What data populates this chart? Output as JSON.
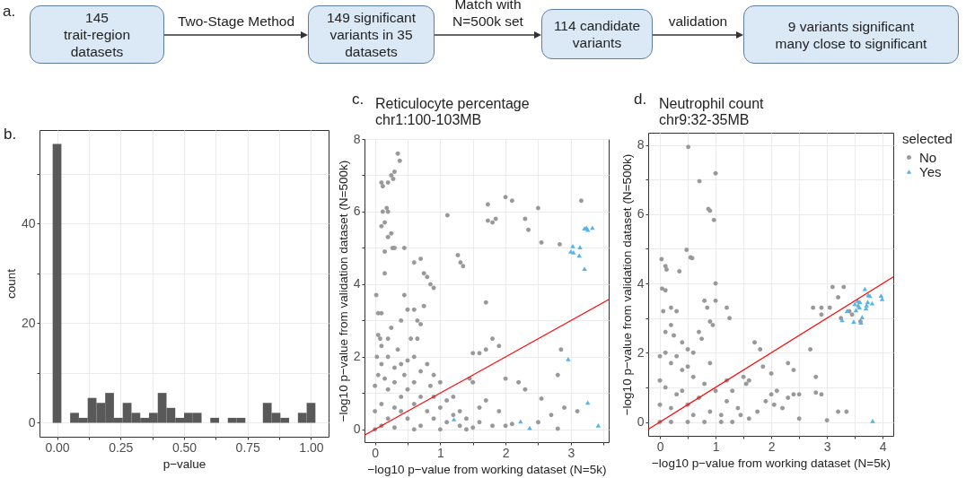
{
  "chart_data": [
    {
      "type": "other",
      "annotations": [
        "a.",
        "Two-Stage Method",
        "Match with\nN=500k set",
        "validation"
      ],
      "categories": [
        "145\ntrait-region\ndatasets",
        "149 significant\nvariants in 35\ndatasets",
        "114 candidate\nvariants",
        "9 variants significant\nmany close to significant"
      ]
    },
    {
      "type": "histogram",
      "annotations": [
        "b."
      ],
      "xlabel": "p−value",
      "ylabel": "count",
      "color": "#595959",
      "grid": true,
      "bins": [
        -0.0172,
        0.0172,
        0.0517,
        0.0862,
        0.1207,
        0.1552,
        0.1897,
        0.2241,
        0.2586,
        0.2931,
        0.3276,
        0.3621,
        0.3966,
        0.431,
        0.4655,
        0.5,
        0.5345,
        0.569,
        0.6034,
        0.6379,
        0.6724,
        0.7069,
        0.7414,
        0.7759,
        0.8103,
        0.8448,
        0.8793,
        0.9138,
        0.9483,
        0.9828,
        1.0172
      ],
      "values": [
        56,
        0,
        2,
        1,
        5,
        4,
        6,
        1,
        4,
        2,
        1,
        2,
        6,
        3,
        1,
        2,
        2,
        0,
        1,
        0,
        1,
        1,
        0,
        0,
        4,
        2,
        1,
        0,
        2,
        4
      ],
      "xlim": [
        -0.069,
        1.069
      ],
      "ylim": [
        -2.8,
        58.8
      ],
      "xticks": [
        {
          "value": 0,
          "label": "0.00"
        },
        {
          "value": 0.125,
          "label": null
        },
        {
          "value": 0.25,
          "label": "0.25"
        },
        {
          "value": 0.375,
          "label": null
        },
        {
          "value": 0.5,
          "label": "0.50"
        },
        {
          "value": 0.625,
          "label": null
        },
        {
          "value": 0.75,
          "label": "0.75"
        },
        {
          "value": 0.875,
          "label": null
        },
        {
          "value": 1,
          "label": "1.00"
        }
      ],
      "yticks": [
        0,
        {
          "value": 10,
          "label": null
        },
        20,
        {
          "value": 30,
          "label": null
        },
        40,
        {
          "value": 50,
          "label": null
        }
      ]
    },
    {
      "type": "scatter",
      "annotations": [
        "c."
      ],
      "title": "Reticulocyte percentage",
      "subtitle": "chr1:100-103MB",
      "xlabel": "−log10 p−value from working dataset (N=5k)",
      "ylabel": "−log10 p−value from validation dataset (N=500k)",
      "grid": true,
      "xlim": [
        -0.16,
        3.58
      ],
      "ylim": [
        -0.35,
        8.0
      ],
      "xticks": [
        0,
        {
          "value": 0.5,
          "label": null
        },
        1,
        {
          "value": 1.5,
          "label": null
        },
        2,
        {
          "value": 2.5,
          "label": null
        },
        3,
        {
          "value": 3.5,
          "label": null
        }
      ],
      "yticks": [
        0,
        {
          "value": 1,
          "label": null
        },
        2,
        {
          "value": 3,
          "label": null
        },
        4,
        {
          "value": 5,
          "label": null
        },
        6,
        {
          "value": 7,
          "label": null
        },
        8
      ],
      "series": [
        {
          "type": "scatter",
          "marker": "circle",
          "color": "#999999",
          "x": [
            0.02,
            0.05,
            0.08,
            0.03,
            0.1,
            0.12,
            0.2,
            0.25,
            0.3,
            0.28,
            0.35,
            0.38,
            0.1,
            0.15,
            0.12,
            0.18,
            0.2,
            0.2,
            0.25,
            0.27,
            0.3,
            0.15,
            0.1,
            0.1,
            0.2,
            0.5,
            0.6,
            0.65,
            0.7,
            0.75,
            0.55,
            0.65,
            0.8,
            0.85,
            0.9,
            0.75,
            0.7,
            0.6,
            0.45,
            0.4,
            1.27,
            1.31,
            1.35,
            1.73,
            1.85,
            1.8,
            2.0,
            2.1,
            2.3,
            2.5,
            2.55,
            2.35,
            1.73,
            1.11,
            3.16,
            2.83,
            1.7,
            1.5,
            1.6,
            1.7,
            1.8,
            1.9,
            1.45,
            1.5,
            2.0,
            2.2,
            2.3,
            2.8,
            2.85,
            2.55,
            2.9,
            3.1,
            2.7,
            2.5,
            2.1,
            1.8,
            1.6,
            2.8,
            1.3,
            1.1,
            1.0,
            0.9,
            0.8,
            0.7,
            0.6,
            0.5,
            0.4,
            0.3,
            0.2,
            0.1,
            0.05,
            0.0,
            0.0,
            0.0,
            0.1,
            0.2,
            0.3,
            0.4,
            0.5,
            0.6,
            0.2,
            0.3,
            0.4,
            0.5,
            0.6,
            0.7,
            0.8,
            0.9,
            1.0,
            1.1,
            1.2,
            1.3,
            1.4,
            1.5,
            0.7,
            0.3,
            0.1,
            0.15,
            0.45,
            0.9,
            1.2,
            1.6,
            1.7,
            1.9,
            2.0,
            0.6,
            1.0,
            1.4,
            0.05,
            0.25,
            0.35,
            0.85,
            0.15,
            0.45
          ],
          "values": [
            3.7,
            3.2,
            2.5,
            2.0,
            6.8,
            6.7,
            6.8,
            7.0,
            7.1,
            6.9,
            7.6,
            7.4,
            5.6,
            5.7,
            6.0,
            6.1,
            6.0,
            5.3,
            5.4,
            5.0,
            5.0,
            4.3,
            3.2,
            2.3,
            2.5,
            3.3,
            3.3,
            3.0,
            2.9,
            3.4,
            2.5,
            2.5,
            4.2,
            4.0,
            3.9,
            4.3,
            4.7,
            4.6,
            3.7,
            3.0,
            4.8,
            4.6,
            4.5,
            5.75,
            5.8,
            5.7,
            6.4,
            6.3,
            5.8,
            6.1,
            5.15,
            5.5,
            6.2,
            5.9,
            6.3,
            5.1,
            3.5,
            2.1,
            2.1,
            2.2,
            2.5,
            2.3,
            1.4,
            1.3,
            1.4,
            1.3,
            1.1,
            1.5,
            2.2,
            0.85,
            0.6,
            0.5,
            0.4,
            0.2,
            0.15,
            0.1,
            0.2,
            0.02,
            0.5,
            0.8,
            1.3,
            1.5,
            1.8,
            1.6,
            2.0,
            1.9,
            1.8,
            1.7,
            2.0,
            1.8,
            1.5,
            1.2,
            0.5,
            0.0,
            0.1,
            0.3,
            0.6,
            0.9,
            1.1,
            1.3,
            1.1,
            1.3,
            0.5,
            0.3,
            0.7,
            0.9,
            0.5,
            0.3,
            0.6,
            0.2,
            0.4,
            0.1,
            0.3,
            0.05,
            0.1,
            0.05,
            0.7,
            1.4,
            1.5,
            0.9,
            0.9,
            0.6,
            0.8,
            0.5,
            0.1,
            0.0,
            0.0,
            0.0,
            2.6,
            2.8,
            2.2,
            1.2,
            4.9,
            5.0
          ]
        },
        {
          "type": "scatter",
          "marker": "triangle",
          "color": "#56b4e9",
          "x": [
            3.24,
            3.26,
            3.33,
            3.21,
            3.03,
            3.14,
            3.0,
            3.04,
            3.13,
            3.21,
            2.96,
            3.26,
            3.42,
            2.23,
            2.37,
            1.21
          ],
          "values": [
            5.56,
            5.5,
            5.56,
            5.54,
            5.05,
            5.02,
            4.9,
            4.88,
            4.79,
            4.43,
            1.94,
            0.74,
            0.11,
            0.22,
            0.04,
            0.28
          ]
        },
        {
          "type": "line",
          "color": "#ff0000",
          "x": [
            -0.16,
            3.58
          ],
          "values": [
            -0.16,
            3.58
          ]
        }
      ]
    },
    {
      "type": "scatter",
      "annotations": [
        "d."
      ],
      "title": "Neutrophil count",
      "subtitle": "chr9:32-35MB",
      "xlabel": "−log10 p−value from working dataset (N=5k)",
      "ylabel": "−log10 p−value from validation dataset (N=500k)",
      "grid": true,
      "legend": "right",
      "legend_title": "selected",
      "xlim": [
        -0.21,
        4.19
      ],
      "ylim": [
        -0.4,
        8.35
      ],
      "xticks": [
        0,
        {
          "value": 0.5,
          "label": null
        },
        1,
        {
          "value": 1.5,
          "label": null
        },
        2,
        {
          "value": 2.5,
          "label": null
        },
        3,
        {
          "value": 3.5,
          "label": null
        },
        4
      ],
      "yticks": [
        0,
        {
          "value": 1,
          "label": null
        },
        2,
        {
          "value": 3,
          "label": null
        },
        4,
        {
          "value": 5,
          "label": null
        },
        6,
        {
          "value": 7,
          "label": null
        },
        8
      ],
      "series": [
        {
          "type": "scatter",
          "name": "No",
          "marker": "circle",
          "color": "#999999",
          "x": [
            0.51,
            1.0,
            0.71,
            0.87,
            0.9,
            0.97,
            0.48,
            0.55,
            0.58,
            0.03,
            0.1,
            0.12,
            0.35,
            0.04,
            0.1,
            0.06,
            0.2,
            0.3,
            0.8,
            0.85,
            1.0,
            1.0,
            1.2,
            1.25,
            0.9,
            0.95,
            0.7,
            0.75,
            0.6,
            0.4,
            0.2,
            0.1,
            0.25,
            0.5,
            0.1,
            0.0,
            0.2,
            0.4,
            0.6,
            0.8,
            1.0,
            1.2,
            1.4,
            1.6,
            0.0,
            0.0,
            0.0,
            0.2,
            0.5,
            0.8,
            1.1,
            0.3,
            0.5,
            0.7,
            0.9,
            1.1,
            1.3,
            0.1,
            0.2,
            0.4,
            0.6,
            1.5,
            1.6,
            1.55,
            1.7,
            1.8,
            1.85,
            1.9,
            2.0,
            2.1,
            2.2,
            2.3,
            2.4,
            2.5,
            2.5,
            2.4,
            2.3,
            2.8,
            2.8,
            2.9,
            3.0,
            2.7,
            3.2,
            3.35,
            2.75,
            2.9,
            2.9,
            3.05,
            3.1,
            3.2,
            3.3,
            3.6,
            3.45,
            3.25,
            3.4,
            1.3,
            1.2,
            1.45,
            0.3,
            0.5,
            0.9,
            2.0,
            2.05,
            1.75
          ],
          "values": [
            7.94,
            7.18,
            6.95,
            6.15,
            6.1,
            5.83,
            4.97,
            4.75,
            4.73,
            4.7,
            4.5,
            4.4,
            4.35,
            3.85,
            3.8,
            3.2,
            3.3,
            3.2,
            3.5,
            3.3,
            3.5,
            4.0,
            3.3,
            3.0,
            2.9,
            2.8,
            2.6,
            2.4,
            2.0,
            2.3,
            2.8,
            2.6,
            2.5,
            2.1,
            2.0,
            1.9,
            1.7,
            1.5,
            1.3,
            1.1,
            0.9,
            0.6,
            0.4,
            0.1,
            1.2,
            0.5,
            0.0,
            0.0,
            0.0,
            0.0,
            0.0,
            0.8,
            0.5,
            0.7,
            0.3,
            0.2,
            0.0,
            1.0,
            0.4,
            0.9,
            0.2,
            1.3,
            1.2,
            1.1,
            2.3,
            2.1,
            1.6,
            0.6,
            0.8,
            0.9,
            0.4,
            0.7,
            0.8,
            0.8,
            0.1,
            1.5,
            1.7,
            1.3,
            0.85,
            0.8,
            0.05,
            2.1,
            0.3,
            0.3,
            3.3,
            3.3,
            3.1,
            3.3,
            3.9,
            3.6,
            3.9,
            2.9,
            3.1,
            3.0,
            3.2,
            0.9,
            1.2,
            0.2,
            1.9,
            1.6,
            1.7,
            1.4,
            0.5,
            0.3
          ]
        },
        {
          "type": "scatter",
          "name": "Yes",
          "marker": "triangle",
          "color": "#56b4e9",
          "x": [
            3.68,
            3.55,
            3.59,
            3.5,
            3.56,
            3.74,
            3.77,
            3.73,
            3.71,
            3.7,
            3.81,
            3.97,
            3.99,
            3.52,
            3.36,
            3.27,
            3.48,
            3.63,
            3.61,
            3.82,
            3.58
          ],
          "values": [
            3.84,
            3.5,
            3.47,
            3.41,
            3.37,
            3.67,
            3.64,
            3.47,
            3.37,
            3.28,
            3.43,
            3.65,
            3.55,
            3.23,
            3.21,
            2.94,
            2.9,
            3.03,
            2.87,
            0.03,
            3.31
          ]
        },
        {
          "type": "line",
          "color": "#ff0000",
          "x": [
            -0.21,
            4.19
          ],
          "values": [
            -0.21,
            4.19
          ]
        }
      ]
    }
  ]
}
